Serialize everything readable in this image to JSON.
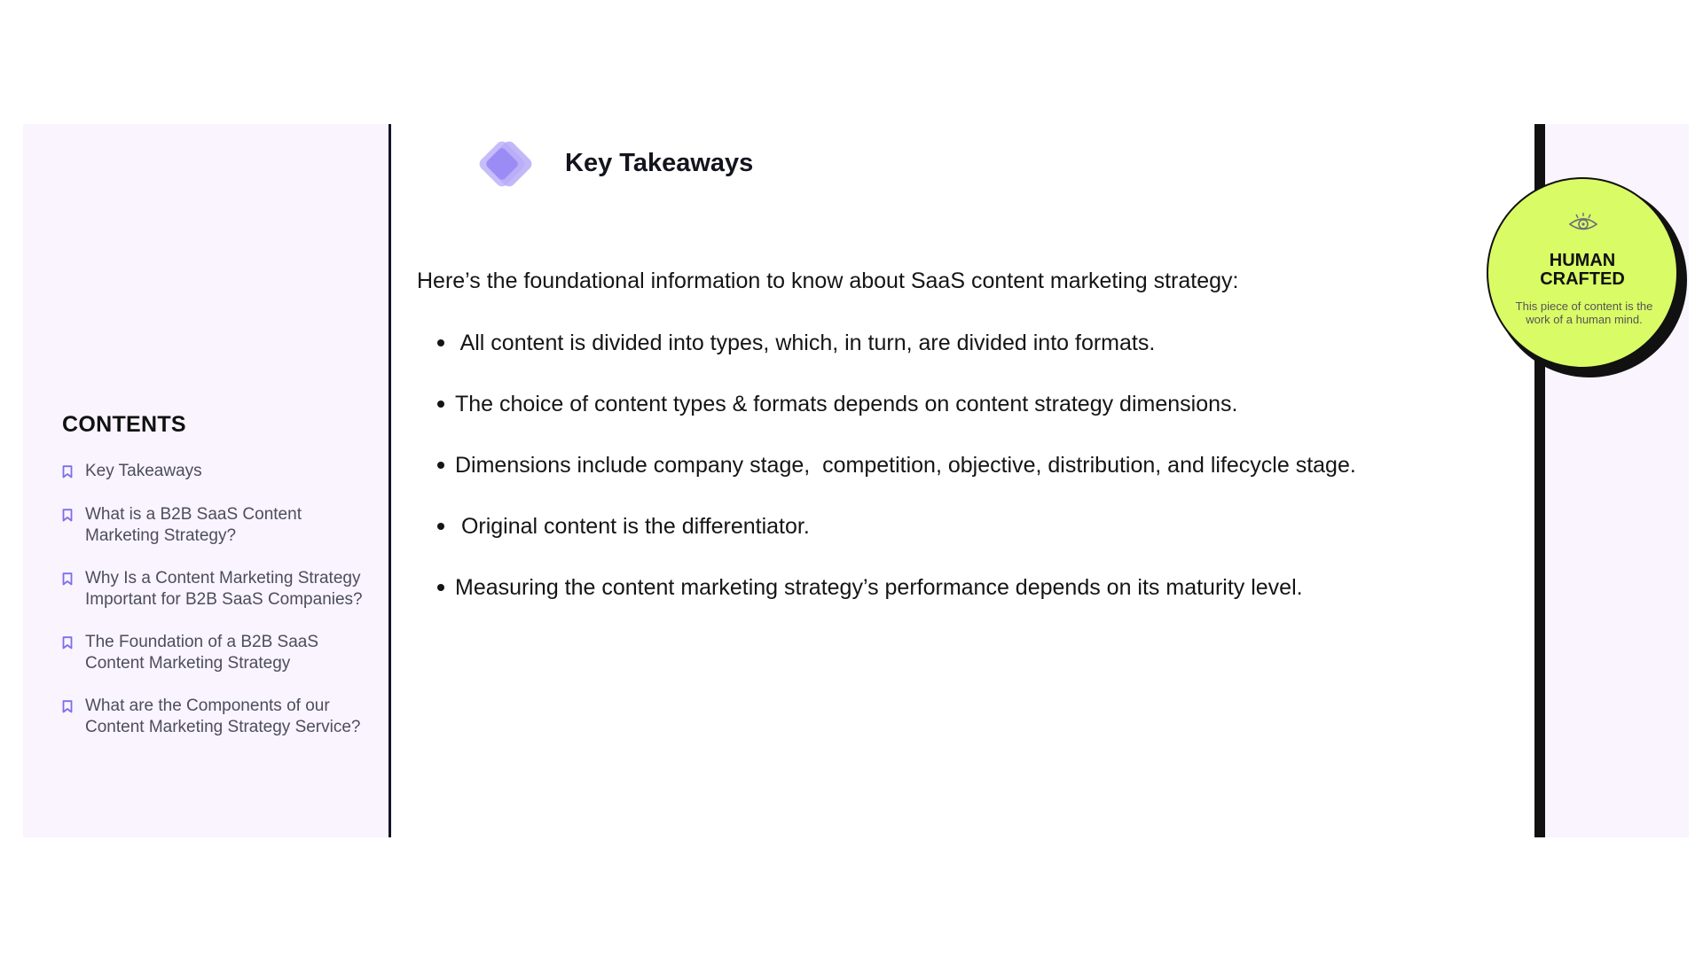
{
  "sidebar": {
    "contents_title": "CONTENTS",
    "items": [
      {
        "label": "Key Takeaways",
        "icon": "bookmark-icon"
      },
      {
        "label": "What is a B2B SaaS Content Marketing Strategy?",
        "icon": "bookmark-icon"
      },
      {
        "label": "Why Is a Content Marketing Strategy Important for B2B SaaS Companies?",
        "icon": "bookmark-icon"
      },
      {
        "label": "The Foundation of a B2B SaaS Content Marketing Strategy",
        "icon": "bookmark-icon"
      },
      {
        "label": "What are the Components of our Content Marketing Strategy Service?",
        "icon": "bookmark-icon"
      }
    ]
  },
  "main": {
    "title": "Key Takeaways",
    "title_icon": "diamond-icon",
    "intro": "Here’s the foundational information to know about SaaS content marketing strategy:",
    "bullets": [
      " All content is divided into types, which, in turn, are divided into formats.",
      "The choice of content types & formats depends on content strategy dimensions.",
      "Dimensions include company stage,  competition, objective, distribution, and lifecycle stage.",
      " Original content is the differentiator.",
      "Measuring the content marketing strategy’s performance depends on its maturity level."
    ]
  },
  "badge": {
    "icon": "eye-icon",
    "title_line1": "HUMAN",
    "title_line2": "CRAFTED",
    "text": "This piece of content is the work of a human mind."
  },
  "colors": {
    "sidebar_bg": "#f9f4fd",
    "accent_purple": "#9b8cf5",
    "badge_green": "#d9fb66",
    "dark": "#111111"
  }
}
